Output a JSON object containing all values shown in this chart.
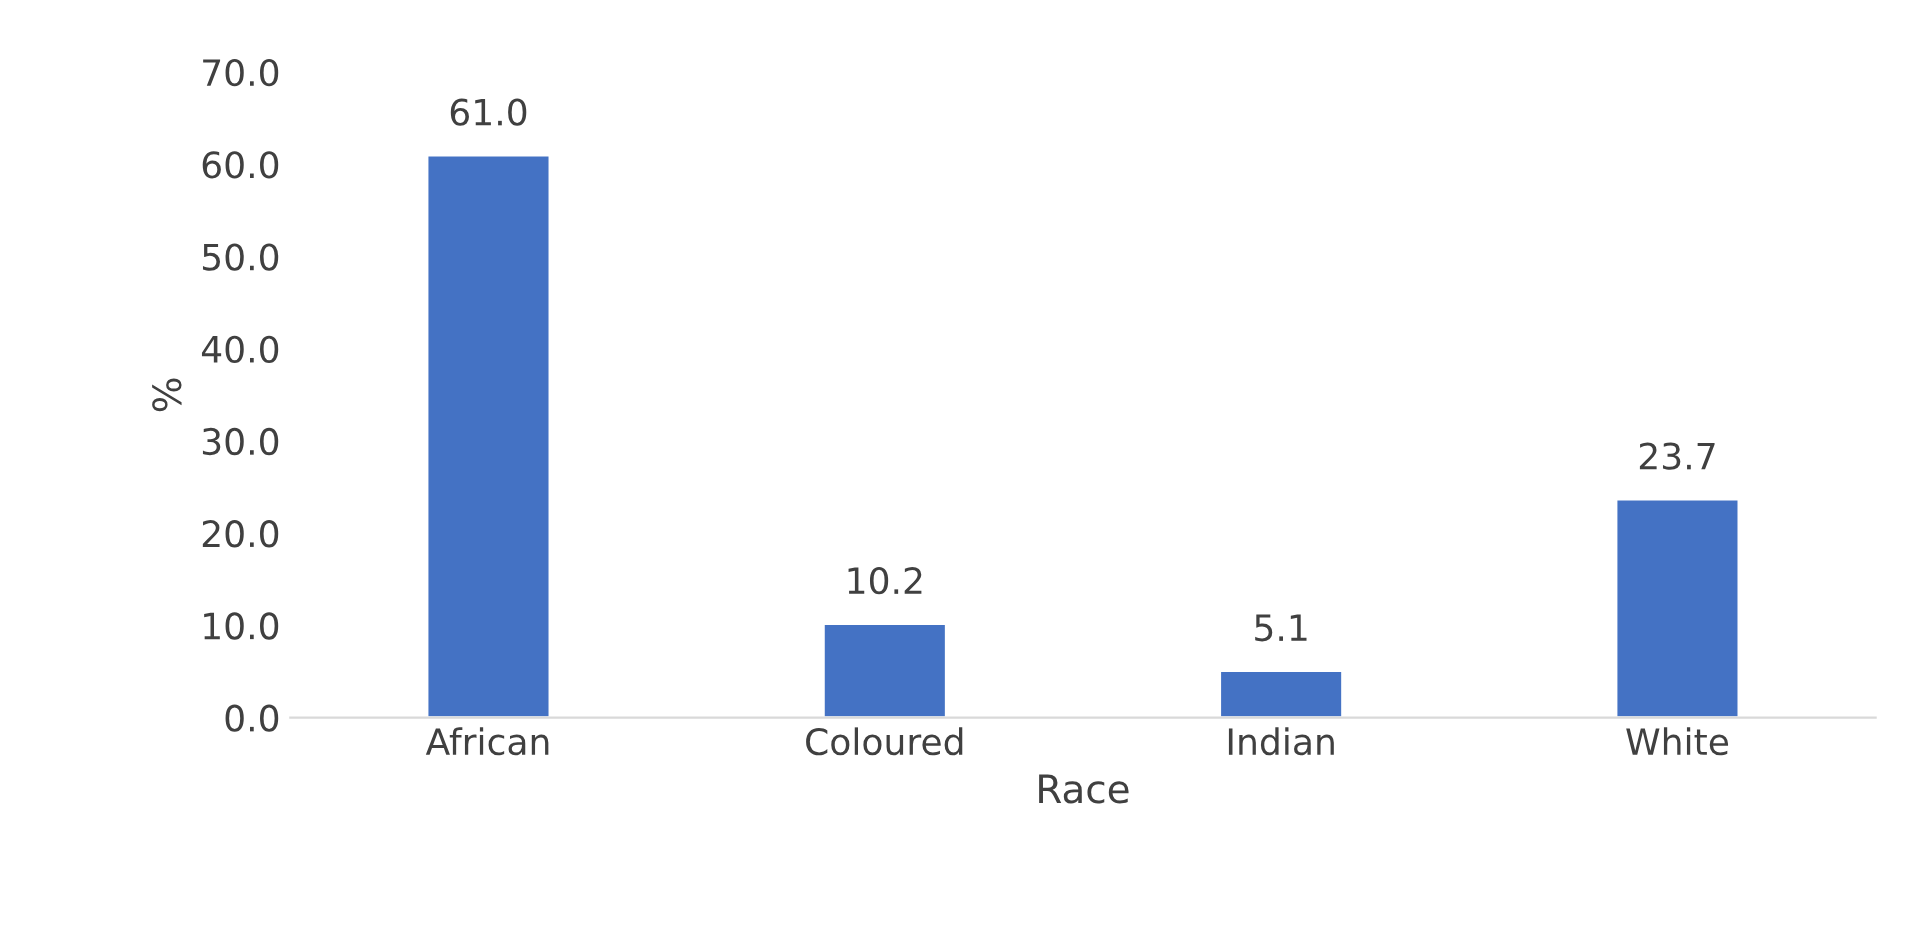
{
  "chart_data": {
    "type": "bar",
    "xlabel": "Race",
    "ylabel": "%",
    "categories": [
      "African",
      "Coloured",
      "Indian",
      "White"
    ],
    "values": [
      61.0,
      10.2,
      5.1,
      23.7
    ],
    "color": "#4472c4",
    "ylim": [
      0,
      70
    ],
    "yticks": [
      {
        "value": 0,
        "label": "0.0"
      },
      {
        "value": 10,
        "label": "10.0"
      },
      {
        "value": 20,
        "label": "20.0"
      },
      {
        "value": 30,
        "label": "30.0"
      },
      {
        "value": 40,
        "label": "40.0"
      },
      {
        "value": 50,
        "label": "50.0"
      },
      {
        "value": 60,
        "label": "60.0"
      },
      {
        "value": 70,
        "label": "70.0"
      }
    ],
    "value_labels": [
      "61.0",
      "10.2",
      "5.1",
      "23.7"
    ],
    "grid": false,
    "legend": false
  }
}
